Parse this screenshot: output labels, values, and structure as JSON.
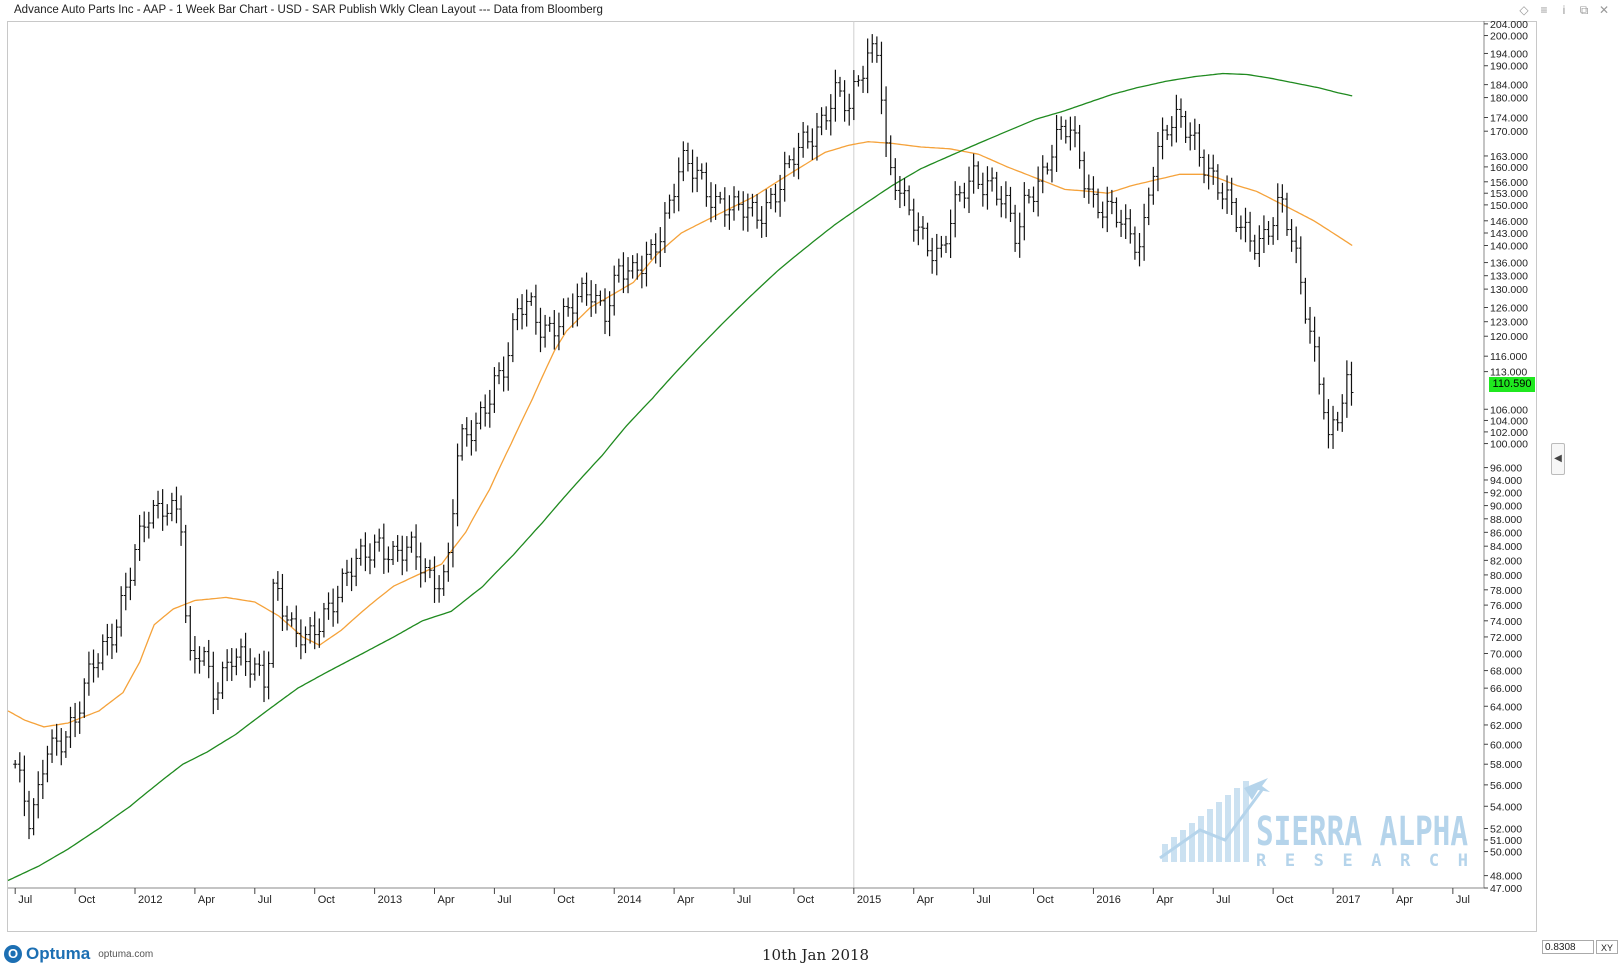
{
  "window": {
    "title": "Advance Auto Parts Inc - AAP - 1 Week Bar Chart - USD - SAR Publish Wkly Clean Layout --- Data from Bloomberg",
    "controls": [
      "◇",
      "≡",
      "i",
      "⧉",
      "✕"
    ]
  },
  "footer": {
    "logo_mark": "O",
    "logo_word": "Optuma",
    "logo_site": "optuma.com",
    "date": "10th Jan 2018",
    "scale_value": "0.8308",
    "xy_label": "XY",
    "side_arrow": "◀"
  },
  "watermark": {
    "line1": "SIERRA ALPHA",
    "line2": "RESEARCH"
  },
  "colors": {
    "bars": "#111111",
    "ma_short": "#f5a23a",
    "ma_long": "#1f8a1f",
    "last_price_bg": "#1fe81f",
    "watermark": "#a9cde8"
  },
  "chart_data": {
    "type": "ohlc-bar",
    "title": "Advance Auto Parts Inc - AAP - 1 Week Bar Chart",
    "scale": "log",
    "ylim": [
      47,
      205
    ],
    "last_price": "110.590",
    "y_ticks": [
      "204.000",
      "200.000",
      "194.000",
      "190.000",
      "184.000",
      "180.000",
      "174.000",
      "170.000",
      "163.000",
      "160.000",
      "156.000",
      "153.000",
      "150.000",
      "146.000",
      "143.000",
      "140.000",
      "136.000",
      "133.000",
      "130.000",
      "126.000",
      "123.000",
      "120.000",
      "116.000",
      "113.000",
      "106.000",
      "104.000",
      "102.000",
      "100.000",
      "96.000",
      "94.000",
      "92.000",
      "90.000",
      "88.000",
      "86.000",
      "84.000",
      "82.000",
      "80.000",
      "78.000",
      "76.000",
      "74.000",
      "72.000",
      "70.000",
      "68.000",
      "66.000",
      "64.000",
      "62.000",
      "60.000",
      "58.000",
      "56.000",
      "54.000",
      "52.000",
      "51.000",
      "50.000",
      "48.000",
      "47.000"
    ],
    "x_labels": [
      "Jul",
      "Oct",
      "2012",
      "Apr",
      "Jul",
      "Oct",
      "2013",
      "Apr",
      "Jul",
      "Oct",
      "2014",
      "Apr",
      "Jul",
      "Oct",
      "2015",
      "Apr",
      "Jul",
      "Oct",
      "2016",
      "Apr",
      "Jul",
      "Oct",
      "2017",
      "Apr",
      "Jul"
    ],
    "x_label_pos": [
      0.0,
      0.25,
      0.5,
      0.75,
      1.0,
      1.25,
      1.5,
      1.75,
      2.0,
      2.25,
      2.5,
      2.75,
      3.0,
      3.25,
      3.5,
      3.75,
      4.0,
      4.25,
      4.5,
      4.75,
      5.0,
      5.25,
      5.5,
      5.75,
      6.0
    ],
    "x_range": [
      -0.03,
      6.13
    ],
    "vertical_marker": 3.5,
    "price_anchors": [
      [
        0.0,
        58
      ],
      [
        0.06,
        52
      ],
      [
        0.09,
        54
      ],
      [
        0.13,
        60
      ],
      [
        0.2,
        61
      ],
      [
        0.25,
        62
      ],
      [
        0.33,
        69
      ],
      [
        0.42,
        74
      ],
      [
        0.48,
        80
      ],
      [
        0.55,
        88
      ],
      [
        0.62,
        91
      ],
      [
        0.69,
        89
      ],
      [
        0.72,
        68
      ],
      [
        0.78,
        70
      ],
      [
        0.83,
        66
      ],
      [
        0.9,
        70
      ],
      [
        0.98,
        68
      ],
      [
        1.05,
        67
      ],
      [
        1.08,
        80
      ],
      [
        1.16,
        72
      ],
      [
        1.22,
        71
      ],
      [
        1.3,
        76
      ],
      [
        1.39,
        80
      ],
      [
        1.45,
        82
      ],
      [
        1.52,
        85
      ],
      [
        1.58,
        83
      ],
      [
        1.65,
        83
      ],
      [
        1.72,
        80
      ],
      [
        1.78,
        80
      ],
      [
        1.8,
        80
      ],
      [
        1.85,
        99
      ],
      [
        1.92,
        102
      ],
      [
        2.0,
        112
      ],
      [
        2.05,
        115
      ],
      [
        2.1,
        125
      ],
      [
        2.15,
        126
      ],
      [
        2.2,
        122
      ],
      [
        2.3,
        124
      ],
      [
        2.4,
        130
      ],
      [
        2.46,
        126
      ],
      [
        2.52,
        134
      ],
      [
        2.58,
        132
      ],
      [
        2.66,
        140
      ],
      [
        2.72,
        148
      ],
      [
        2.78,
        160
      ],
      [
        2.85,
        158
      ],
      [
        2.92,
        152
      ],
      [
        3.0,
        148
      ],
      [
        3.1,
        148
      ],
      [
        3.2,
        156
      ],
      [
        3.28,
        165
      ],
      [
        3.35,
        172
      ],
      [
        3.42,
        182
      ],
      [
        3.48,
        175
      ],
      [
        3.52,
        185
      ],
      [
        3.56,
        195
      ],
      [
        3.6,
        198
      ],
      [
        3.64,
        160
      ],
      [
        3.72,
        148
      ],
      [
        3.8,
        142
      ],
      [
        3.86,
        138
      ],
      [
        3.92,
        148
      ],
      [
        4.0,
        158
      ],
      [
        4.08,
        156
      ],
      [
        4.14,
        148
      ],
      [
        4.18,
        140
      ],
      [
        4.22,
        152
      ],
      [
        4.28,
        158
      ],
      [
        4.34,
        167
      ],
      [
        4.4,
        170
      ],
      [
        4.46,
        158
      ],
      [
        4.5,
        152
      ],
      [
        4.58,
        148
      ],
      [
        4.64,
        142
      ],
      [
        4.7,
        140
      ],
      [
        4.74,
        160
      ],
      [
        4.8,
        170
      ],
      [
        4.86,
        172
      ],
      [
        4.92,
        168
      ],
      [
        4.98,
        160
      ],
      [
        5.04,
        152
      ],
      [
        5.1,
        145
      ],
      [
        5.16,
        142
      ],
      [
        5.22,
        143
      ],
      [
        5.28,
        150
      ],
      [
        5.34,
        138
      ],
      [
        5.38,
        128
      ],
      [
        5.42,
        118
      ],
      [
        5.46,
        108
      ],
      [
        5.48,
        100
      ],
      [
        5.52,
        104
      ],
      [
        5.56,
        110
      ],
      [
        5.58,
        108
      ]
    ],
    "ma_short_anchors": [
      [
        -0.03,
        63.5
      ],
      [
        0.04,
        62.5
      ],
      [
        0.12,
        61.8
      ],
      [
        0.22,
        62.2
      ],
      [
        0.35,
        63.5
      ],
      [
        0.45,
        65.5
      ],
      [
        0.52,
        69
      ],
      [
        0.58,
        73.5
      ],
      [
        0.66,
        75.5
      ],
      [
        0.75,
        76.6
      ],
      [
        0.88,
        77
      ],
      [
        1.0,
        76.4
      ],
      [
        1.1,
        74.6
      ],
      [
        1.2,
        72
      ],
      [
        1.27,
        71
      ],
      [
        1.36,
        72.8
      ],
      [
        1.48,
        76
      ],
      [
        1.58,
        78.5
      ],
      [
        1.68,
        80
      ],
      [
        1.78,
        81.5
      ],
      [
        1.88,
        86
      ],
      [
        1.98,
        92.5
      ],
      [
        2.07,
        100
      ],
      [
        2.16,
        108
      ],
      [
        2.25,
        117
      ],
      [
        2.3,
        121
      ],
      [
        2.4,
        126
      ],
      [
        2.5,
        129
      ],
      [
        2.58,
        131.5
      ],
      [
        2.68,
        138
      ],
      [
        2.78,
        143
      ],
      [
        2.88,
        146
      ],
      [
        2.98,
        149
      ],
      [
        3.08,
        152
      ],
      [
        3.18,
        156
      ],
      [
        3.28,
        160
      ],
      [
        3.38,
        164
      ],
      [
        3.48,
        166
      ],
      [
        3.56,
        167
      ],
      [
        3.66,
        166.5
      ],
      [
        3.78,
        165.5
      ],
      [
        3.9,
        165
      ],
      [
        4.02,
        163.5
      ],
      [
        4.14,
        160
      ],
      [
        4.26,
        157
      ],
      [
        4.38,
        154
      ],
      [
        4.48,
        153.5
      ],
      [
        4.56,
        153
      ],
      [
        4.66,
        155
      ],
      [
        4.76,
        156.5
      ],
      [
        4.86,
        158
      ],
      [
        4.96,
        158
      ],
      [
        5.02,
        157
      ],
      [
        5.1,
        155
      ],
      [
        5.18,
        153.5
      ],
      [
        5.26,
        151
      ],
      [
        5.34,
        148.5
      ],
      [
        5.42,
        146
      ],
      [
        5.5,
        143
      ],
      [
        5.58,
        140
      ]
    ],
    "ma_long_anchors": [
      [
        -0.03,
        47.6
      ],
      [
        0.1,
        48.8
      ],
      [
        0.22,
        50.2
      ],
      [
        0.35,
        52
      ],
      [
        0.48,
        54
      ],
      [
        0.6,
        56.2
      ],
      [
        0.7,
        58
      ],
      [
        0.8,
        59.2
      ],
      [
        0.92,
        61
      ],
      [
        1.05,
        63.5
      ],
      [
        1.18,
        66
      ],
      [
        1.3,
        67.8
      ],
      [
        1.45,
        70
      ],
      [
        1.58,
        72
      ],
      [
        1.7,
        74
      ],
      [
        1.82,
        75.2
      ],
      [
        1.95,
        78.4
      ],
      [
        2.08,
        82.8
      ],
      [
        2.2,
        87.4
      ],
      [
        2.32,
        92.5
      ],
      [
        2.45,
        98
      ],
      [
        2.55,
        103
      ],
      [
        2.66,
        108
      ],
      [
        2.76,
        113
      ],
      [
        2.86,
        118
      ],
      [
        2.96,
        123
      ],
      [
        3.06,
        128
      ],
      [
        3.18,
        134
      ],
      [
        3.3,
        139.5
      ],
      [
        3.42,
        145
      ],
      [
        3.54,
        150
      ],
      [
        3.66,
        155
      ],
      [
        3.78,
        159.5
      ],
      [
        3.9,
        163
      ],
      [
        4.02,
        166.5
      ],
      [
        4.14,
        170
      ],
      [
        4.26,
        173.5
      ],
      [
        4.38,
        176
      ],
      [
        4.48,
        178.5
      ],
      [
        4.58,
        181
      ],
      [
        4.68,
        183
      ],
      [
        4.8,
        185
      ],
      [
        4.92,
        186.5
      ],
      [
        5.04,
        187.5
      ],
      [
        5.14,
        187.2
      ],
      [
        5.24,
        186
      ],
      [
        5.34,
        184.5
      ],
      [
        5.44,
        183
      ],
      [
        5.52,
        181.5
      ],
      [
        5.58,
        180.5
      ]
    ]
  }
}
